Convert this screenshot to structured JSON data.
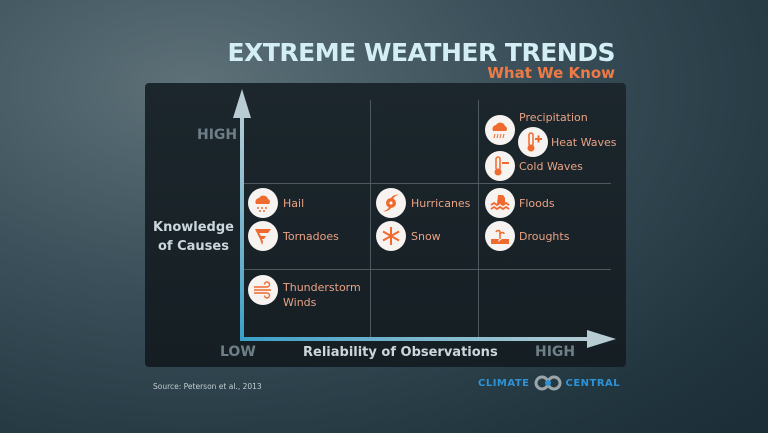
{
  "title": "EXTREME WEATHER TRENDS",
  "subtitle": "What We Know",
  "y_axis": {
    "label_line1": "Knowledge",
    "label_line2": "of Causes",
    "high": "HIGH"
  },
  "x_axis": {
    "label": "Reliability of Observations",
    "low": "LOW",
    "high": "HIGH"
  },
  "items": [
    {
      "label": "Precipitation",
      "icon": "rain-cloud-icon",
      "knowledge": "high",
      "reliability": "high"
    },
    {
      "label": "Heat Waves",
      "icon": "thermometer-plus-icon",
      "knowledge": "high",
      "reliability": "high"
    },
    {
      "label": "Cold Waves",
      "icon": "thermometer-minus-icon",
      "knowledge": "high",
      "reliability": "high"
    },
    {
      "label": "Hail",
      "icon": "hail-cloud-icon",
      "knowledge": "medium",
      "reliability": "low"
    },
    {
      "label": "Tornadoes",
      "icon": "tornado-icon",
      "knowledge": "medium",
      "reliability": "low"
    },
    {
      "label": "Hurricanes",
      "icon": "hurricane-icon",
      "knowledge": "medium",
      "reliability": "medium"
    },
    {
      "label": "Snow",
      "icon": "snowflake-icon",
      "knowledge": "medium",
      "reliability": "medium"
    },
    {
      "label": "Floods",
      "icon": "flood-icon",
      "knowledge": "medium",
      "reliability": "high"
    },
    {
      "label": "Droughts",
      "icon": "drought-icon",
      "knowledge": "medium",
      "reliability": "high"
    },
    {
      "label_line1": "Thunderstorm",
      "label_line2": "Winds",
      "icon": "wind-icon",
      "knowledge": "low",
      "reliability": "low"
    }
  ],
  "source": "Source: Peterson et al., 2013",
  "logo": {
    "left": "CLIMATE",
    "right": "CENTRAL"
  },
  "colors": {
    "accent": "#ef6a2e",
    "title": "#d4eef5",
    "axis": "#a9c3cc"
  }
}
